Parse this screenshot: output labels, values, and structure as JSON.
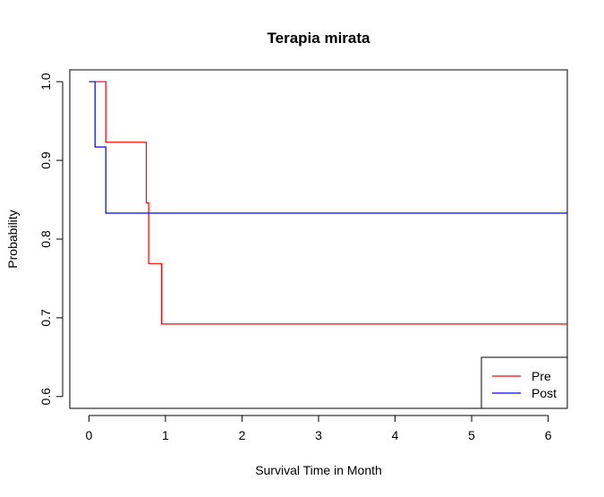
{
  "chart_data": {
    "type": "line",
    "title": "Terapia mirata",
    "xlabel": "Survival Time in Month",
    "ylabel": "Probability",
    "xlim": [
      -0.25,
      6.25
    ],
    "ylim": [
      0.585,
      1.015
    ],
    "x_ticks": [
      0,
      1,
      2,
      3,
      4,
      5,
      6
    ],
    "x_tick_labels": [
      "0",
      "1",
      "2",
      "3",
      "4",
      "5",
      "6"
    ],
    "y_ticks": [
      0.6,
      0.7,
      0.8,
      0.9,
      1.0
    ],
    "y_tick_labels": [
      "0.6",
      "0.7",
      "0.8",
      "0.9",
      "1.0"
    ],
    "step": true,
    "grid": false,
    "legend_position": "bottom-right",
    "series": [
      {
        "name": "Pre",
        "color": "#ff0000",
        "points": [
          [
            0.08,
            1.0
          ],
          [
            0.22,
            1.0
          ],
          [
            0.22,
            0.923
          ],
          [
            0.75,
            0.923
          ],
          [
            0.75,
            0.846
          ],
          [
            0.78,
            0.846
          ],
          [
            0.78,
            0.769
          ],
          [
            0.95,
            0.769
          ],
          [
            0.95,
            0.692
          ],
          [
            6.25,
            0.692
          ]
        ]
      },
      {
        "name": "Post",
        "color": "#0000ff",
        "points": [
          [
            0.0,
            1.0
          ],
          [
            0.08,
            1.0
          ],
          [
            0.08,
            0.917
          ],
          [
            0.22,
            0.917
          ],
          [
            0.22,
            0.833
          ],
          [
            6.25,
            0.833
          ]
        ]
      }
    ]
  }
}
